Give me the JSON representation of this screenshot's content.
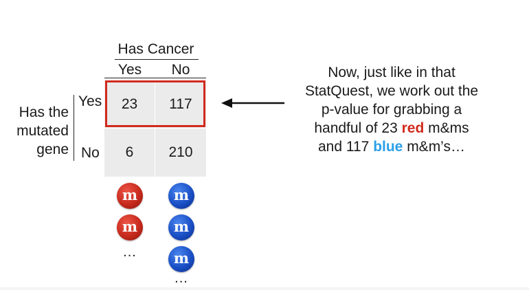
{
  "table": {
    "column_group_title": "Has Cancer",
    "column_headers": [
      "Yes",
      "No"
    ],
    "row_group_title": [
      "Has the",
      "mutated",
      "gene"
    ],
    "row_headers": [
      "Yes",
      "No"
    ],
    "cells": [
      [
        "23",
        "117"
      ],
      [
        "6",
        "210"
      ]
    ]
  },
  "candies": {
    "letter": "m",
    "ellipsis": "...",
    "red_color": "#c62a1d",
    "blue_color": "#1a4fc6"
  },
  "highlight_color": "#d12a1e",
  "explanation": {
    "line1": "Now, just like in that",
    "line2": "StatQuest, we work out the",
    "line3": "p-value for grabbing a",
    "line4_pre": "handful of 23 ",
    "line4_red": "red",
    "line4_post": " m&ms",
    "line5_pre": "and 117 ",
    "line5_blue": "blue",
    "line5_post": " m&m’s…",
    "red_color": "#d12a1e",
    "blue_color": "#2a9fe8"
  }
}
